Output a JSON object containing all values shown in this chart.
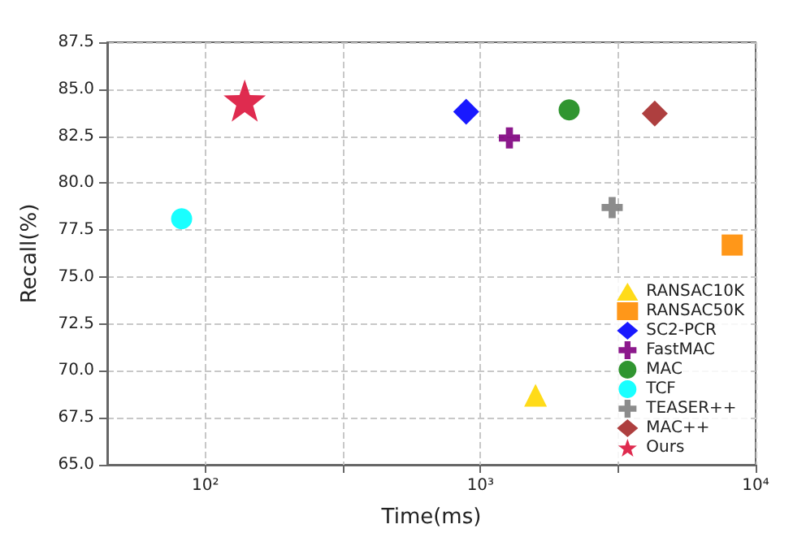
{
  "chart_data": {
    "type": "scatter",
    "xlabel": "Time(ms)",
    "ylabel": "Recall(%)",
    "log": "x",
    "grid": true,
    "legend": "bottom right",
    "xlim": [
      44,
      10000
    ],
    "xticks": [
      {
        "value": 100,
        "label": "10²"
      },
      {
        "value": 316.2,
        "label": null
      },
      {
        "value": 1000,
        "label": "10³"
      },
      {
        "value": 3162,
        "label": null
      },
      {
        "value": 10000,
        "label": "10⁴"
      }
    ],
    "ylim": [
      65,
      87.5
    ],
    "yticks": [
      {
        "value": 65,
        "label": "65.0"
      },
      {
        "value": 67.5,
        "label": "67.5"
      },
      {
        "value": 70,
        "label": "70.0"
      },
      {
        "value": 72.5,
        "label": "72.5"
      },
      {
        "value": 75,
        "label": "75.0"
      },
      {
        "value": 77.5,
        "label": "77.5"
      },
      {
        "value": 80,
        "label": "80.0"
      },
      {
        "value": 82.5,
        "label": "82.5"
      },
      {
        "value": 85,
        "label": "85.0"
      },
      {
        "value": 87.5,
        "label": "87.5"
      }
    ],
    "series": [
      {
        "name": "RANSAC10K",
        "color": "#ffd700",
        "marker": "triangle",
        "x": [
          1585
        ],
        "values": [
          68.7
        ]
      },
      {
        "name": "RANSAC50K",
        "color": "#ff8c00",
        "marker": "square",
        "x": [
          8220
        ],
        "values": [
          76.7
        ]
      },
      {
        "name": "SC2-PCR",
        "color": "#0000ff",
        "marker": "diamond",
        "x": [
          887
        ],
        "values": [
          83.8
        ]
      },
      {
        "name": "FastMAC",
        "color": "#800080",
        "marker": "cross",
        "x": [
          1274
        ],
        "values": [
          82.4
        ]
      },
      {
        "name": "MAC",
        "color": "#1a8a1a",
        "marker": "circle",
        "x": [
          2100
        ],
        "values": [
          83.9
        ]
      },
      {
        "name": "TCF",
        "color": "#00ffff",
        "marker": "circle",
        "x": [
          82
        ],
        "values": [
          78.1
        ]
      },
      {
        "name": "TEASER++",
        "color": "#808080",
        "marker": "cross",
        "x": [
          3010
        ],
        "values": [
          78.7
        ]
      },
      {
        "name": "MAC++",
        "color": "#a52a2a",
        "marker": "diamond",
        "x": [
          4300
        ],
        "values": [
          83.7
        ]
      },
      {
        "name": "Ours",
        "color": "#dc143c",
        "marker": "star",
        "x": [
          139
        ],
        "values": [
          84.4
        ]
      }
    ]
  }
}
